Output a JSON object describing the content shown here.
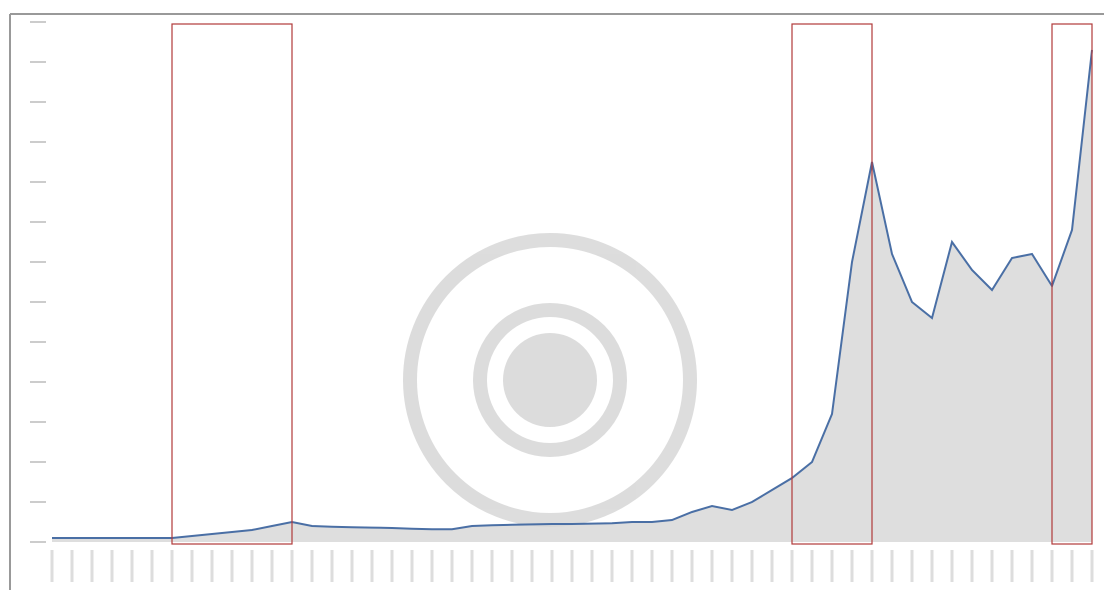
{
  "chart_data": {
    "type": "area",
    "categories": [
      null,
      null,
      null,
      null,
      null,
      null,
      null,
      null,
      null,
      null,
      null,
      null,
      null,
      null,
      null,
      null,
      null,
      null,
      null,
      null,
      null,
      null,
      null,
      null,
      null,
      null,
      null,
      null,
      null,
      null,
      null,
      null,
      null,
      null,
      null,
      null,
      null,
      null,
      null,
      null,
      null,
      null,
      null,
      null,
      null,
      null,
      null,
      null,
      null,
      null,
      null,
      null,
      null
    ],
    "series": [
      {
        "color": "#4a6fa5",
        "values": [
          0.1,
          0.1,
          0.1,
          0.1,
          0.1,
          0.1,
          0.1,
          0.15,
          0.2,
          0.25,
          0.3,
          0.4,
          0.5,
          0.4,
          0.38,
          0.37,
          0.36,
          0.35,
          0.33,
          0.32,
          0.32,
          0.4,
          0.42,
          0.43,
          0.44,
          0.45,
          0.45,
          0.46,
          0.47,
          0.5,
          0.5,
          0.55,
          0.75,
          0.9,
          0.8,
          1.0,
          1.3,
          1.6,
          2.0,
          3.2,
          7.0,
          9.5,
          7.2,
          6.0,
          5.6,
          7.5,
          6.8,
          6.3,
          7.1,
          7.2,
          6.4,
          7.8,
          12.3
        ]
      }
    ],
    "area_color": "#d6d6d6",
    "highlight_ranges": [
      [
        6,
        12
      ],
      [
        37,
        41
      ],
      [
        50,
        52
      ]
    ],
    "highlight_color": "#b03a3a",
    "ylim": [
      0,
      13
    ],
    "yticks": [
      0,
      1,
      2,
      3,
      4,
      5,
      6,
      7,
      8,
      9,
      10,
      11,
      12,
      13
    ]
  }
}
